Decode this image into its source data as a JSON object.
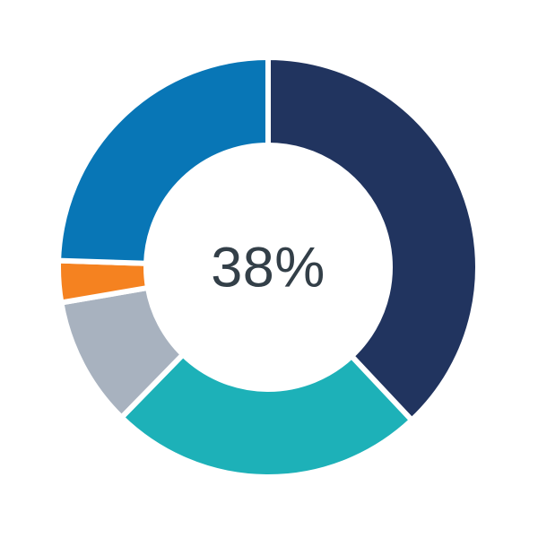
{
  "chart_data": {
    "type": "pie",
    "subtype": "donut",
    "title": "",
    "center_label": "38%",
    "start_angle_deg": 0,
    "direction": "clockwise",
    "legend": "none",
    "labels_shown": false,
    "hole_radius_ratio": 0.58,
    "slice_gap_color": "#FFFFFF",
    "center_text_color": "#333F48",
    "background_color": "#FFFFFF",
    "segments": [
      {
        "name": "navy",
        "value": 38.0,
        "color": "#21345F"
      },
      {
        "name": "teal",
        "value": 24.3,
        "color": "#1DB1B8"
      },
      {
        "name": "gray",
        "value": 10.0,
        "color": "#A8B2BF"
      },
      {
        "name": "orange",
        "value": 3.2,
        "color": "#F58220"
      },
      {
        "name": "blue",
        "value": 24.5,
        "color": "#0876B6"
      }
    ]
  }
}
